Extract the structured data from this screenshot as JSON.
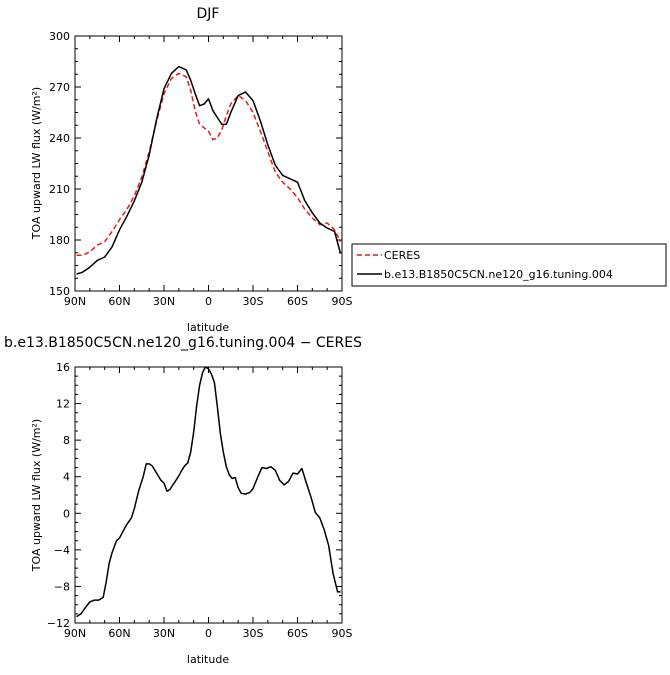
{
  "chart_data": [
    {
      "type": "line",
      "title": "DJF",
      "xlabel": "latitude",
      "ylabel": "TOA upward LW flux (W/m²)",
      "xlim": [
        90,
        -90
      ],
      "ylim": [
        150,
        300
      ],
      "xticks": [
        90,
        60,
        30,
        0,
        -30,
        -60,
        -90
      ],
      "xtick_labels": [
        "90N",
        "60N",
        "30N",
        "0",
        "30S",
        "60S",
        "90S"
      ],
      "yticks": [
        150,
        180,
        210,
        240,
        270,
        300
      ],
      "ytick_labels": [
        "150",
        "180",
        "210",
        "240",
        "270",
        "300"
      ],
      "legend_position": "outside-right",
      "series": [
        {
          "name": "CERES",
          "color": "#e41a1c",
          "dash": "dashed",
          "x": [
            89,
            85,
            80,
            75,
            70,
            65,
            60,
            55,
            50,
            45,
            40,
            35,
            30,
            25,
            20,
            15,
            12,
            9,
            6,
            3,
            0,
            -3,
            -6,
            -9,
            -12,
            -15,
            -20,
            -25,
            -30,
            -35,
            -40,
            -45,
            -50,
            -55,
            -60,
            -65,
            -70,
            -75,
            -80,
            -85,
            -89
          ],
          "y": [
            171,
            171,
            173,
            177,
            179,
            185,
            192,
            198,
            206,
            217,
            232,
            250,
            266,
            275,
            278,
            276,
            268,
            256,
            248,
            246,
            244,
            239,
            240,
            245,
            253,
            260,
            265,
            262,
            255,
            244,
            232,
            220,
            214,
            210,
            205,
            198,
            193,
            189,
            190,
            186,
            179
          ]
        },
        {
          "name": "b.e13.B1850C5CN.ne120_g16.tuning.004",
          "color": "#000000",
          "dash": "solid",
          "x": [
            89,
            85,
            80,
            75,
            70,
            65,
            60,
            55,
            50,
            45,
            40,
            35,
            30,
            25,
            20,
            15,
            12,
            9,
            6,
            3,
            0,
            -3,
            -6,
            -9,
            -12,
            -15,
            -20,
            -25,
            -30,
            -35,
            -40,
            -45,
            -50,
            -55,
            -60,
            -65,
            -70,
            -75,
            -80,
            -85,
            -89
          ],
          "y": [
            160,
            161,
            164,
            168,
            170,
            176,
            186,
            194,
            203,
            214,
            230,
            251,
            269,
            278,
            282,
            280,
            274,
            266,
            259,
            260,
            263,
            256,
            252,
            248,
            248,
            255,
            265,
            267,
            262,
            250,
            236,
            224,
            218,
            216,
            214,
            203,
            196,
            190,
            187,
            185,
            172
          ]
        }
      ]
    },
    {
      "type": "line",
      "title": "b.e13.B1850C5CN.ne120_g16.tuning.004 − CERES",
      "xlabel": "latitude",
      "ylabel": "TOA upward LW flux (W/m²)",
      "xlim": [
        90,
        -90
      ],
      "ylim": [
        -12,
        16
      ],
      "xticks": [
        90,
        60,
        30,
        0,
        -30,
        -60,
        -90
      ],
      "xtick_labels": [
        "90N",
        "60N",
        "30N",
        "0",
        "30S",
        "60S",
        "90S"
      ],
      "yticks": [
        -12,
        -8,
        -4,
        0,
        4,
        8,
        12,
        16
      ],
      "ytick_labels": [
        "−12",
        "−8",
        "−4",
        "0",
        "4",
        "8",
        "12",
        "16"
      ],
      "series": [
        {
          "name": "",
          "color": "#000000",
          "dash": "solid",
          "x": [
            89,
            86,
            83,
            80,
            77,
            74,
            71,
            69,
            67,
            65,
            62,
            60,
            57,
            55,
            52,
            50,
            47,
            44,
            42,
            40,
            38,
            35,
            32,
            30,
            28,
            26,
            24,
            22,
            20,
            18,
            16,
            14,
            12,
            10,
            8,
            6,
            4,
            2,
            0,
            -2,
            -4,
            -6,
            -8,
            -10,
            -12,
            -14,
            -16,
            -18,
            -20,
            -22,
            -25,
            -28,
            -30,
            -33,
            -36,
            -39,
            -42,
            -45,
            -48,
            -51,
            -54,
            -57,
            -60,
            -63,
            -66,
            -69,
            -72,
            -75,
            -78,
            -81,
            -84,
            -87,
            -89
          ],
          "y": [
            -11.3,
            -11,
            -10.3,
            -9.7,
            -9.5,
            -9.5,
            -9.2,
            -7.5,
            -5.5,
            -4.3,
            -3,
            -2.7,
            -1.8,
            -1.2,
            -0.5,
            0.5,
            2.5,
            4,
            5.4,
            5.4,
            5.2,
            4.4,
            3.6,
            3.3,
            2.4,
            2.6,
            3.1,
            3.6,
            4.1,
            4.7,
            5.2,
            5.5,
            6.7,
            8.9,
            11.7,
            14,
            15.4,
            16,
            15.8,
            15.2,
            14.3,
            11.6,
            8.7,
            6.7,
            5.1,
            4.2,
            3.8,
            3.9,
            2.8,
            2.2,
            2.1,
            2.3,
            2.7,
            3.9,
            5,
            4.9,
            5.1,
            4.7,
            3.6,
            3.1,
            3.5,
            4.4,
            4.3,
            4.9,
            3.3,
            1.8,
            0.1,
            -0.5,
            -1.8,
            -3.5,
            -6.6,
            -8.6,
            -8.6
          ]
        }
      ]
    }
  ]
}
